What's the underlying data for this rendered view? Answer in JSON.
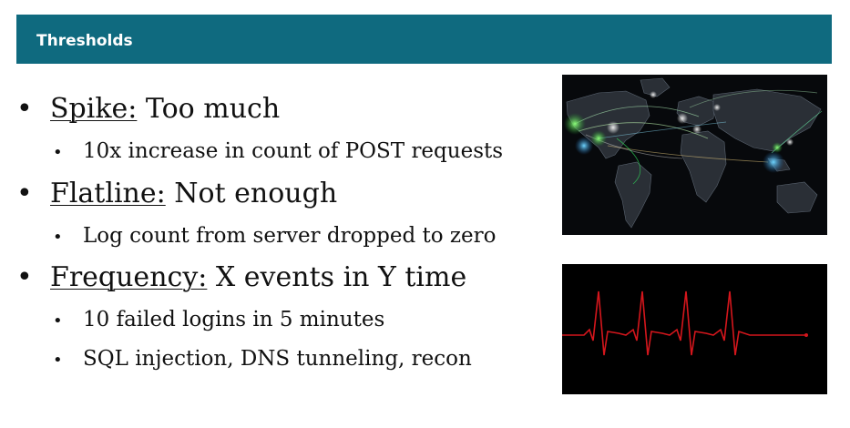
{
  "header": {
    "title": "Thresholds"
  },
  "bullets": [
    {
      "term": "Spike:",
      "rest": " Too much",
      "sub": [
        "10x increase in count of POST requests"
      ]
    },
    {
      "term": "Flatline:",
      "rest": " Not enough",
      "sub": [
        "Log count from server dropped to zero"
      ]
    },
    {
      "term": "Frequency:",
      "rest": " X events in Y time",
      "sub": [
        "10 failed logins in 5 minutes",
        "SQL injection, DNS tunneling, recon"
      ]
    }
  ],
  "colors": {
    "header_bg": "#0f6a7f",
    "pulse_line": "#d4161c"
  }
}
